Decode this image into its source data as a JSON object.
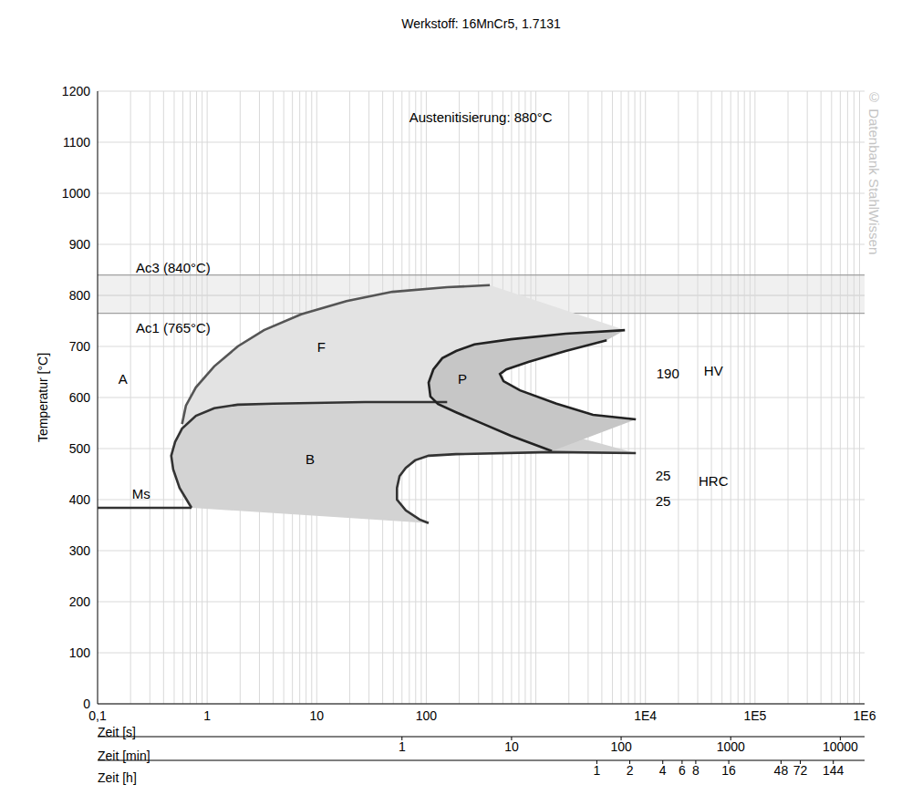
{
  "chart_data": {
    "type": "line",
    "title": "Werkstoff: 16MnCr5, 1.7131",
    "watermark": "© Datenbank StahlWissen",
    "x_label": "Zeit [s]",
    "y_label": "Temperatur [°C]",
    "log": "x",
    "grid": true,
    "xlim": [
      0.1,
      1000000
    ],
    "xticks": [
      {
        "value": 0.1,
        "label": "0,1"
      },
      1,
      10,
      100,
      {
        "value": 10000,
        "label": "1E4"
      },
      {
        "value": 100000,
        "label": "1E5"
      },
      {
        "value": 1000000,
        "label": "1E6"
      }
    ],
    "ylim": [
      0,
      1200
    ],
    "yticks": [
      0,
      100,
      200,
      300,
      400,
      500,
      600,
      700,
      800,
      900,
      1000,
      1100,
      1200
    ],
    "secondary_x_axes": [
      {
        "label": "Zeit [min]",
        "xlim": [
          0.0016666667,
          16666.6667
        ],
        "xticks": [
          1,
          10,
          100,
          1000,
          10000
        ]
      },
      {
        "label": "Zeit [h]",
        "xlim": [
          2.77778e-05,
          277.7778
        ],
        "xticks": [
          1,
          2,
          4,
          6,
          8,
          16,
          48,
          72,
          144
        ]
      }
    ],
    "reference_lines": [
      {
        "y": 840,
        "label": "Ac3 (840°C)",
        "label_x": 0.49,
        "label_y": 855
      },
      {
        "y": 765,
        "label": "Ac1 (765°C)",
        "label_x": 0.49,
        "label_y": 736
      }
    ],
    "band_color": "#000000",
    "regions": [
      {
        "color": "#e3e3e3",
        "x": [
          0.59,
          0.64,
          0.79,
          1.16,
          1.9,
          3.3,
          7.2,
          18.7,
          48.9,
          155,
          380,
          6500,
          1870,
          592,
          275,
          187,
          140,
          116,
          105,
          109,
          128,
          187,
          333,
          592,
          1400
        ],
        "values": [
          548,
          584,
          620,
          661,
          700,
          732,
          763,
          789,
          807,
          816,
          820,
          732,
          725,
          714,
          704,
          691,
          677,
          655,
          629,
          602,
          587,
          571,
          548,
          525,
          495
        ]
      },
      {
        "color": "#d3d3d3",
        "x": [
          155,
          27.5,
          4.0,
          1.9,
          1.16,
          0.79,
          0.59,
          0.51,
          0.47,
          0.49,
          0.56,
          0.72,
          105,
          87,
          65,
          54,
          54,
          57,
          65,
          79,
          105,
          187,
          1400,
          8180
        ],
        "values": [
          591,
          591,
          588,
          586,
          579,
          564,
          539,
          513,
          486,
          459,
          423,
          384,
          354,
          361,
          379,
          400,
          423,
          446,
          462,
          477,
          486,
          489,
          493,
          491
        ]
      },
      {
        "color": "#c6c6c6",
        "x": [
          6500,
          1870,
          592,
          275,
          187,
          140,
          116,
          105,
          109,
          128,
          187,
          333,
          592,
          1400,
          8180,
          3320,
          1540,
          716,
          507,
          470,
          537,
          867,
          1870,
          4430
        ],
        "values": [
          732,
          725,
          714,
          704,
          691,
          677,
          655,
          629,
          602,
          587,
          571,
          548,
          525,
          495,
          557,
          566,
          588,
          614,
          632,
          646,
          655,
          670,
          691,
          712
        ]
      }
    ],
    "series": [
      {
        "color": "#555555",
        "x": [
          380,
          155,
          48.9,
          18.7,
          7.2,
          3.3,
          1.9,
          1.16,
          0.79,
          0.64,
          0.59
        ],
        "values": [
          820,
          816,
          807,
          789,
          763,
          732,
          700,
          661,
          620,
          584,
          548
        ]
      },
      {
        "color": "#333333",
        "x": [
          155,
          27.5,
          4.0,
          1.9,
          1.16,
          0.79,
          0.59,
          0.51,
          0.47,
          0.49,
          0.56,
          0.72
        ],
        "values": [
          591,
          591,
          588,
          586,
          579,
          564,
          539,
          513,
          486,
          459,
          423,
          384
        ]
      },
      {
        "color": "#222222",
        "x": [
          6500,
          1870,
          592,
          275,
          187,
          140,
          116,
          105,
          109,
          128,
          187,
          333,
          592,
          1400
        ],
        "values": [
          732,
          725,
          714,
          704,
          691,
          677,
          655,
          629,
          602,
          587,
          571,
          548,
          525,
          495
        ]
      },
      {
        "color": "#222222",
        "x": [
          4430,
          1870,
          867,
          537,
          470,
          507,
          716,
          1540,
          3320,
          8180
        ],
        "values": [
          712,
          691,
          670,
          655,
          646,
          632,
          614,
          588,
          566,
          557
        ]
      },
      {
        "color": "#333333",
        "x": [
          8180,
          1400,
          187,
          105,
          79,
          65,
          57,
          54,
          54,
          65,
          87,
          105
        ],
        "values": [
          491,
          493,
          489,
          486,
          477,
          462,
          446,
          423,
          400,
          379,
          361,
          354
        ]
      },
      {
        "color": "#333333",
        "x": [
          0.1,
          0.72
        ],
        "values": [
          384,
          384
        ]
      }
    ],
    "annotations": [
      {
        "text": "Austenitisierung: 880°C",
        "x": 314,
        "y": 1150
      },
      {
        "text": "A",
        "x": 0.17,
        "y": 637
      },
      {
        "text": "F",
        "x": 11,
        "y": 700
      },
      {
        "text": "P",
        "x": 214,
        "y": 637
      },
      {
        "text": "B",
        "x": 8.7,
        "y": 480
      },
      {
        "text": "Ms",
        "x": 0.25,
        "y": 411
      },
      {
        "text": "190",
        "x": 16000,
        "y": 648
      },
      {
        "text": "HV",
        "x": 41700,
        "y": 652
      },
      {
        "text": "25",
        "x": 14500,
        "y": 448
      },
      {
        "text": "25",
        "x": 14500,
        "y": 398
      },
      {
        "text": "HRC",
        "x": 41700,
        "y": 437
      }
    ]
  }
}
